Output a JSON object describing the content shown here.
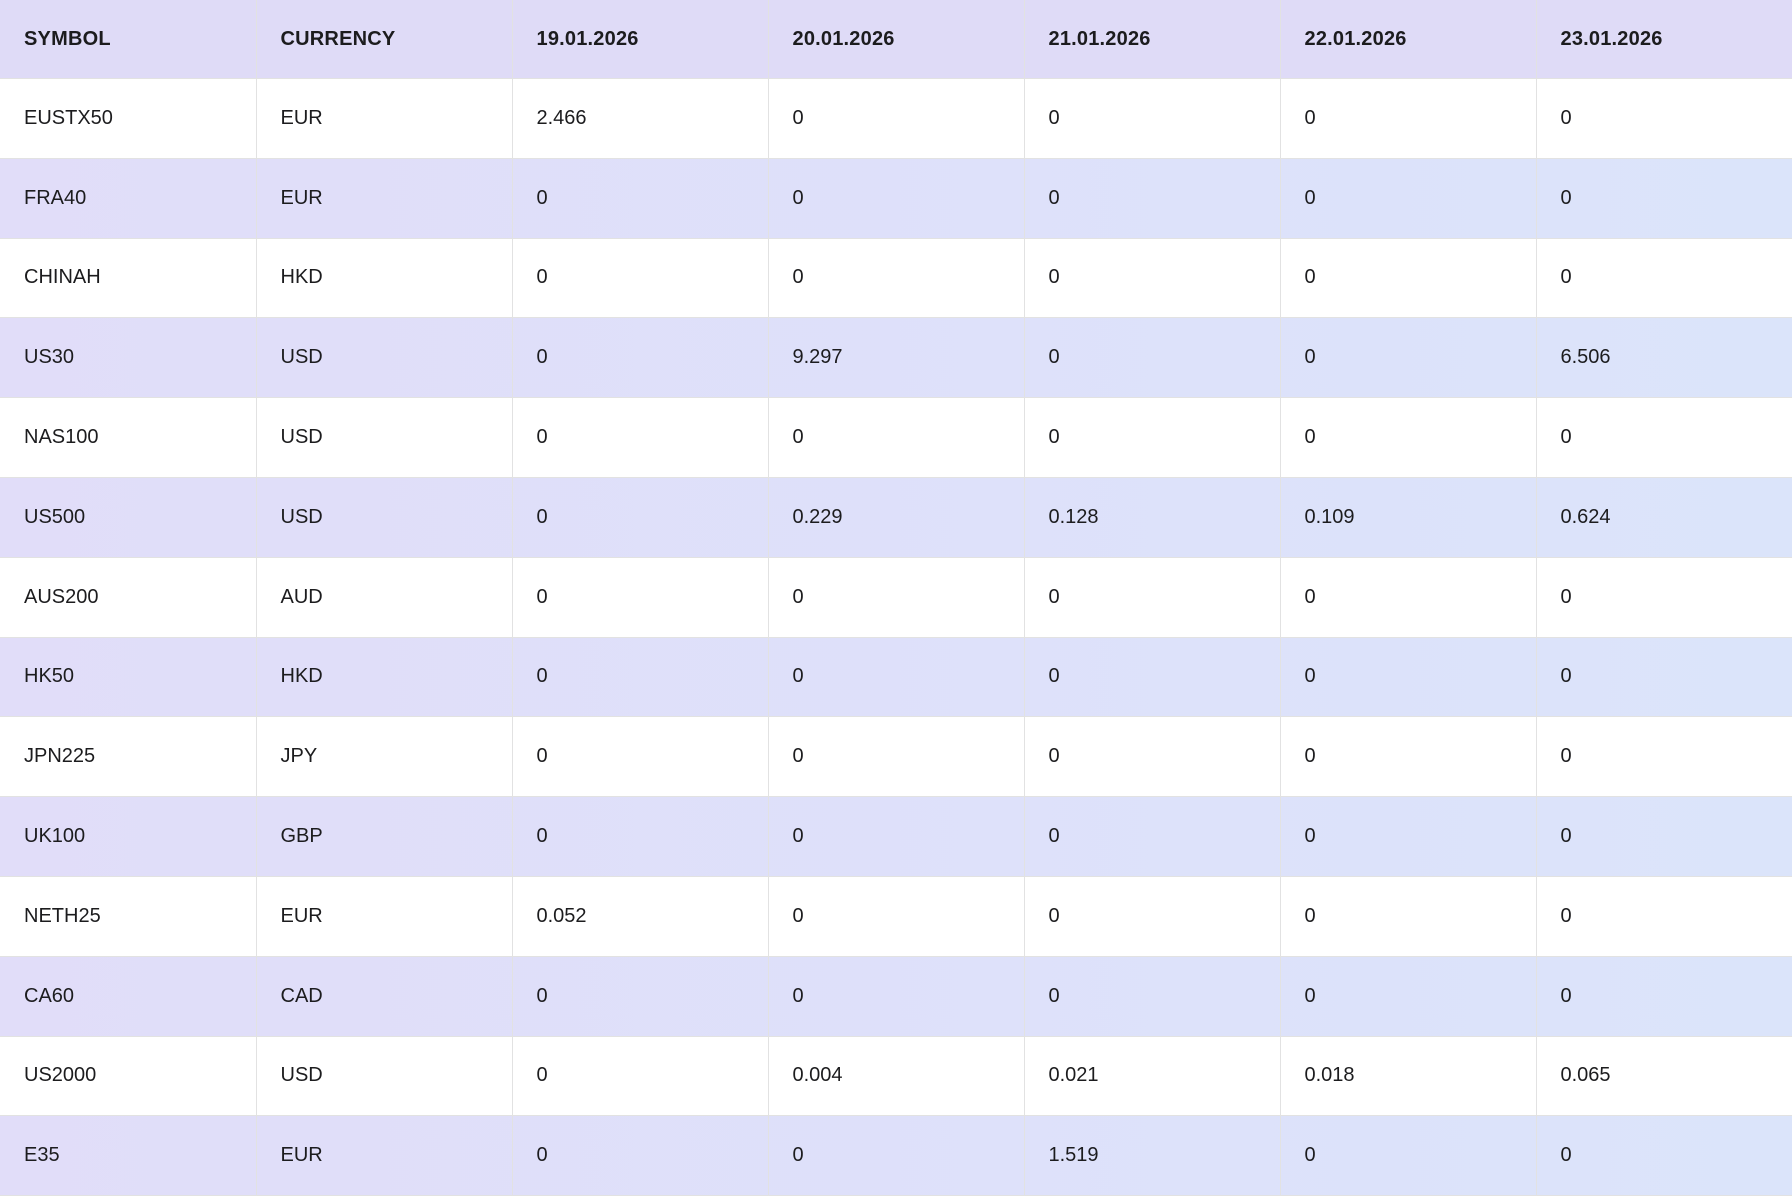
{
  "colors": {
    "header_bg": "#dfdbf7",
    "stripe_left": "#e1ddf9",
    "stripe_right": "#dbe4fa",
    "row_bg": "#ffffff",
    "border": "#e2e2e2",
    "text": "#1c1c1e"
  },
  "chart_data": {
    "type": "table",
    "columns": [
      "SYMBOL",
      "CURRENCY",
      "19.01.2026",
      "20.01.2026",
      "21.01.2026",
      "22.01.2026",
      "23.01.2026"
    ],
    "rows": [
      [
        "EUSTX50",
        "EUR",
        "2.466",
        "0",
        "0",
        "0",
        "0"
      ],
      [
        "FRA40",
        "EUR",
        "0",
        "0",
        "0",
        "0",
        "0"
      ],
      [
        "CHINAH",
        "HKD",
        "0",
        "0",
        "0",
        "0",
        "0"
      ],
      [
        "US30",
        "USD",
        "0",
        "9.297",
        "0",
        "0",
        "6.506"
      ],
      [
        "NAS100",
        "USD",
        "0",
        "0",
        "0",
        "0",
        "0"
      ],
      [
        "US500",
        "USD",
        "0",
        "0.229",
        "0.128",
        "0.109",
        "0.624"
      ],
      [
        "AUS200",
        "AUD",
        "0",
        "0",
        "0",
        "0",
        "0"
      ],
      [
        "HK50",
        "HKD",
        "0",
        "0",
        "0",
        "0",
        "0"
      ],
      [
        "JPN225",
        "JPY",
        "0",
        "0",
        "0",
        "0",
        "0"
      ],
      [
        "UK100",
        "GBP",
        "0",
        "0",
        "0",
        "0",
        "0"
      ],
      [
        "NETH25",
        "EUR",
        "0.052",
        "0",
        "0",
        "0",
        "0"
      ],
      [
        "CA60",
        "CAD",
        "0",
        "0",
        "0",
        "0",
        "0"
      ],
      [
        "US2000",
        "USD",
        "0",
        "0.004",
        "0.021",
        "0.018",
        "0.065"
      ],
      [
        "E35",
        "EUR",
        "0",
        "0",
        "1.519",
        "0",
        "0"
      ]
    ]
  }
}
